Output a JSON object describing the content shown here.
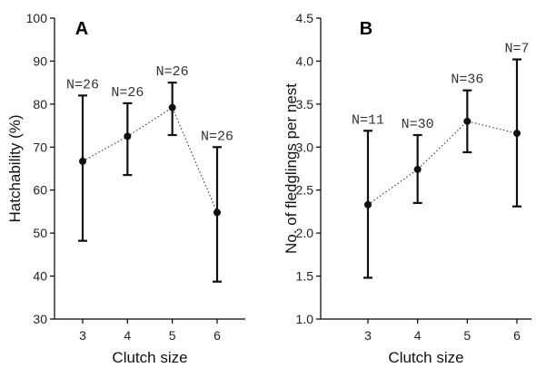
{
  "chart_data": [
    {
      "type": "scatter",
      "panel_label": "A",
      "xlabel": "Clutch size",
      "ylabel": "Hatchability (%)",
      "categories": [
        "3",
        "4",
        "5",
        "6"
      ],
      "ylim": [
        30,
        100
      ],
      "yticks": [
        "30",
        "40",
        "50",
        "60",
        "70",
        "80",
        "90",
        "100"
      ],
      "ytick_values": [
        30,
        40,
        50,
        60,
        70,
        80,
        90,
        100
      ],
      "series": [
        {
          "x": [
            3,
            4,
            5,
            6
          ],
          "values": [
            66.7,
            72.5,
            79.2,
            54.8
          ],
          "lower": [
            48.2,
            63.5,
            72.8,
            38.7
          ],
          "upper": [
            82.0,
            80.2,
            85.0,
            70.0
          ],
          "n_labels": [
            "N=26",
            "N=26",
            "N=26",
            "N=26"
          ]
        }
      ],
      "grid": false
    },
    {
      "type": "scatter",
      "panel_label": "B",
      "xlabel": "Clutch size",
      "ylabel": "No. of fledglings per nest",
      "categories": [
        "3",
        "4",
        "5",
        "6"
      ],
      "ylim": [
        1.0,
        4.5
      ],
      "yticks": [
        "1.0",
        "1.5",
        "2.0",
        "2.5",
        "3.0",
        "3.5",
        "4.0",
        "4.5"
      ],
      "ytick_values": [
        1.0,
        1.5,
        2.0,
        2.5,
        3.0,
        3.5,
        4.0,
        4.5
      ],
      "series": [
        {
          "x": [
            3,
            4,
            5,
            6
          ],
          "values": [
            2.33,
            2.74,
            3.3,
            3.16
          ],
          "lower": [
            1.48,
            2.35,
            2.94,
            2.31
          ],
          "upper": [
            3.19,
            3.14,
            3.66,
            4.02
          ],
          "n_labels": [
            "N=11",
            "N=30",
            "N=36",
            "N=7"
          ]
        }
      ],
      "grid": false
    }
  ]
}
